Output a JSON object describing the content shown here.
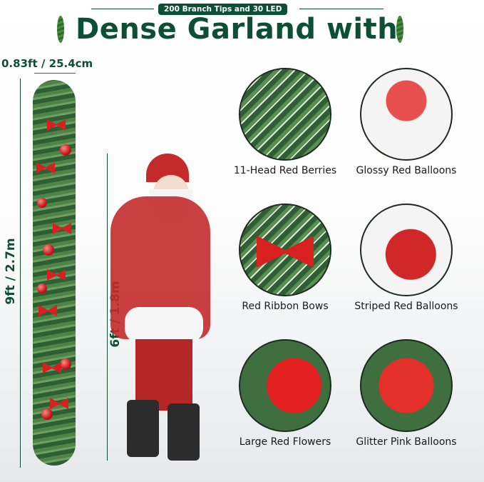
{
  "header": {
    "badge": "200 Branch Tips and 30 LED",
    "title": "Dense Garland with"
  },
  "dimensions": {
    "width": "0.83ft / 25.4cm",
    "garland_length": "9ft / 2.7m",
    "santa_height": "6ft / 1.8m"
  },
  "features": [
    {
      "label": "11-Head Red Berries",
      "icon": "red-berries"
    },
    {
      "label": "Glossy Red Balloons",
      "icon": "glossy-red-ball"
    },
    {
      "label": "Red Ribbon Bows",
      "icon": "red-bow"
    },
    {
      "label": "Striped Red Balloons",
      "icon": "striped-ball"
    },
    {
      "label": "Large Red Flowers",
      "icon": "red-poinsettia"
    },
    {
      "label": "Glitter Pink Balloons",
      "icon": "glitter-ball"
    }
  ],
  "colors": {
    "brand_green": "#0d4f35",
    "ornament_red": "#c4161c"
  }
}
